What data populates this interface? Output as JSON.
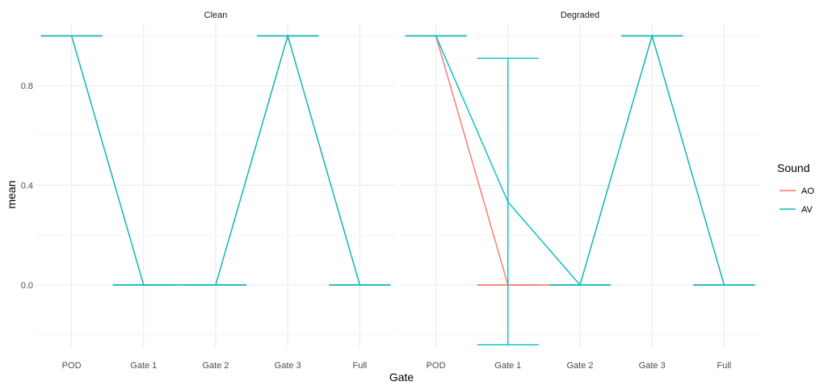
{
  "chart_data": {
    "type": "line",
    "xlabel": "Gate",
    "ylabel": "mean",
    "categories": [
      "POD",
      "Gate 1",
      "Gate 2",
      "Gate 3",
      "Full"
    ],
    "ylim": [
      -0.25,
      1.05
    ],
    "yticks": [
      0.0,
      0.4,
      0.8
    ],
    "ytick_labels": [
      "0.0",
      "0.4",
      "0.8"
    ],
    "grid": true,
    "legend": {
      "title": "Sound",
      "position": "right"
    },
    "series_colors": {
      "AO": "#F8766D",
      "AV": "#00BFC4"
    },
    "panels": [
      {
        "title": "Clean",
        "series": [
          {
            "name": "AO",
            "values": [
              1,
              0,
              0,
              1,
              0
            ],
            "lower": [
              1,
              0,
              0,
              1,
              0
            ],
            "upper": [
              1,
              0,
              0,
              1,
              0
            ]
          },
          {
            "name": "AV",
            "values": [
              1,
              0,
              0,
              1,
              0
            ],
            "lower": [
              1,
              0,
              0,
              1,
              0
            ],
            "upper": [
              1,
              0,
              0,
              1,
              0
            ]
          }
        ]
      },
      {
        "title": "Degraded",
        "series": [
          {
            "name": "AO",
            "values": [
              1,
              0,
              0,
              1,
              0
            ],
            "lower": [
              1,
              0,
              0,
              1,
              0
            ],
            "upper": [
              1,
              0,
              0,
              1,
              0
            ]
          },
          {
            "name": "AV",
            "values": [
              1,
              0.333,
              0,
              1,
              0
            ],
            "lower": [
              1,
              -0.24,
              0,
              1,
              0
            ],
            "upper": [
              1,
              0.91,
              0,
              1,
              0
            ]
          }
        ]
      }
    ]
  }
}
